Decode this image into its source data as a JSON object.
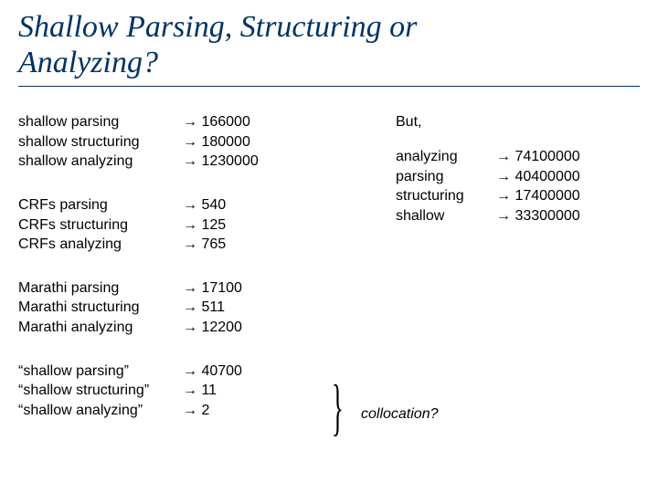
{
  "title_line1": "Shallow Parsing, Structuring or",
  "title_line2": "Analyzing?",
  "groups": [
    {
      "labels": [
        "shallow parsing",
        "shallow structuring",
        "shallow analyzing"
      ],
      "values": [
        "166000",
        "180000",
        "1230000"
      ]
    },
    {
      "labels": [
        "CRFs parsing",
        "CRFs structuring",
        "CRFs analyzing"
      ],
      "values": [
        "540",
        "125",
        "765"
      ]
    },
    {
      "labels": [
        "Marathi parsing",
        "Marathi structuring",
        "Marathi analyzing"
      ],
      "values": [
        "17100",
        "511",
        "12200"
      ]
    },
    {
      "labels": [
        "“shallow parsing”",
        "“shallow structuring”",
        "“shallow analyzing”"
      ],
      "values": [
        "40700",
        "11",
        "2"
      ]
    }
  ],
  "but_label": "But,",
  "right_rows": [
    {
      "label": "analyzing",
      "value": "74100000"
    },
    {
      "label": "parsing",
      "value": "40400000"
    },
    {
      "label": "structuring",
      "value": "17400000"
    },
    {
      "label": "shallow",
      "value": "33300000"
    }
  ],
  "collocation": "collocation?",
  "arrow_glyph": "→"
}
